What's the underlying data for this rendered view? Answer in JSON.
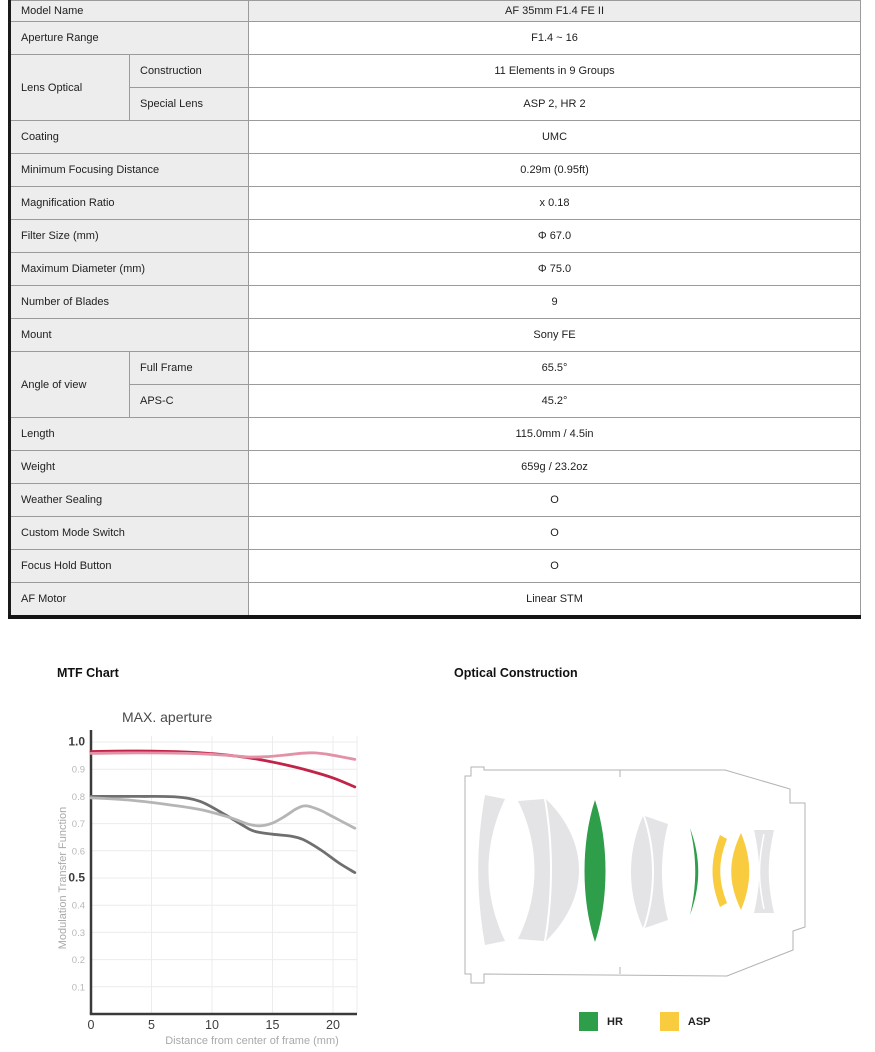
{
  "table": {
    "rows": [
      {
        "label": "Model Name",
        "value": "AF 35mm F1.4 FE II",
        "header": true
      },
      {
        "label": "Aperture Range",
        "value": "F1.4 ~ 16"
      },
      {
        "label": "Lens Optical",
        "sub": [
          {
            "label": "Construction",
            "value": "11 Elements in 9 Groups"
          },
          {
            "label": "Special Lens",
            "value": "ASP 2, HR 2"
          }
        ]
      },
      {
        "label": "Coating",
        "value": "UMC"
      },
      {
        "label": "Minimum Focusing Distance",
        "value": "0.29m (0.95ft)"
      },
      {
        "label": "Magnification Ratio",
        "value": "x 0.18"
      },
      {
        "label": "Filter Size (mm)",
        "value": "Φ 67.0"
      },
      {
        "label": "Maximum Diameter (mm)",
        "value": "Φ 75.0"
      },
      {
        "label": "Number of Blades",
        "value": "9"
      },
      {
        "label": "Mount",
        "value": "Sony FE"
      },
      {
        "label": "Angle of view",
        "sub": [
          {
            "label": "Full Frame",
            "value": "65.5°"
          },
          {
            "label": "APS-C",
            "value": "45.2°"
          }
        ]
      },
      {
        "label": "Length",
        "value": "115.0mm / 4.5in"
      },
      {
        "label": "Weight",
        "value": "659g / 23.2oz"
      },
      {
        "label": "Weather Sealing",
        "value": "O"
      },
      {
        "label": "Custom Mode Switch",
        "value": "O"
      },
      {
        "label": "Focus Hold Button",
        "value": "O"
      },
      {
        "label": "AF Motor",
        "value": "Linear STM"
      }
    ]
  },
  "mtf": {
    "heading": "MTF Chart"
  },
  "chart_data": {
    "type": "line",
    "title": "MAX. aperture",
    "xlabel": "Distance from center of frame (mm)",
    "ylabel": "Modulation Transfer Function",
    "xlim": [
      0,
      22
    ],
    "ylim": [
      0,
      1.0
    ],
    "x_ticks": [
      0,
      5,
      10,
      15,
      20
    ],
    "y_ticks": [
      0.1,
      0.2,
      0.3,
      0.4,
      0.5,
      0.6,
      0.7,
      0.8,
      0.9,
      1.0
    ],
    "y_major_ticks": [
      0.5,
      1.0
    ],
    "grid": true,
    "legend_position": "none",
    "series": [
      {
        "name": "crimson-upper",
        "color": "#c22349",
        "width": 2.8,
        "points": [
          [
            0,
            0.965
          ],
          [
            4,
            0.967
          ],
          [
            8,
            0.963
          ],
          [
            10,
            0.957
          ],
          [
            12,
            0.948
          ],
          [
            14,
            0.935
          ],
          [
            16,
            0.917
          ],
          [
            18,
            0.895
          ],
          [
            20,
            0.868
          ],
          [
            21.8,
            0.835
          ]
        ]
      },
      {
        "name": "pink-upper",
        "color": "#e391a6",
        "width": 2.8,
        "points": [
          [
            0,
            0.958
          ],
          [
            4,
            0.96
          ],
          [
            8,
            0.958
          ],
          [
            11,
            0.952
          ],
          [
            13,
            0.945
          ],
          [
            14.5,
            0.946
          ],
          [
            16,
            0.952
          ],
          [
            17.5,
            0.959
          ],
          [
            18.5,
            0.96
          ],
          [
            19.5,
            0.955
          ],
          [
            20.5,
            0.947
          ],
          [
            21.8,
            0.936
          ]
        ]
      },
      {
        "name": "dark-gray-lower",
        "color": "#6f6f6f",
        "width": 2.8,
        "points": [
          [
            0,
            0.8
          ],
          [
            4,
            0.8
          ],
          [
            7,
            0.798
          ],
          [
            9,
            0.782
          ],
          [
            11,
            0.735
          ],
          [
            12.5,
            0.695
          ],
          [
            13.5,
            0.672
          ],
          [
            15,
            0.661
          ],
          [
            16.5,
            0.654
          ],
          [
            17.5,
            0.642
          ],
          [
            19,
            0.603
          ],
          [
            20.5,
            0.555
          ],
          [
            21.8,
            0.52
          ]
        ]
      },
      {
        "name": "light-gray-lower",
        "color": "#b5b5b5",
        "width": 2.8,
        "points": [
          [
            0,
            0.795
          ],
          [
            3,
            0.787
          ],
          [
            6,
            0.772
          ],
          [
            9,
            0.752
          ],
          [
            11.5,
            0.722
          ],
          [
            13,
            0.698
          ],
          [
            14,
            0.692
          ],
          [
            15,
            0.702
          ],
          [
            16,
            0.726
          ],
          [
            17,
            0.755
          ],
          [
            17.8,
            0.765
          ],
          [
            19,
            0.748
          ],
          [
            20,
            0.725
          ],
          [
            21.8,
            0.683
          ]
        ]
      }
    ]
  },
  "construction": {
    "heading": "Optical Construction",
    "element_color": "#e4e4e6",
    "outline_color": "#b3b3b3",
    "legend": [
      {
        "label": "HR",
        "color": "#2f9e4a"
      },
      {
        "label": "ASP",
        "color": "#f8cc3e"
      }
    ]
  }
}
